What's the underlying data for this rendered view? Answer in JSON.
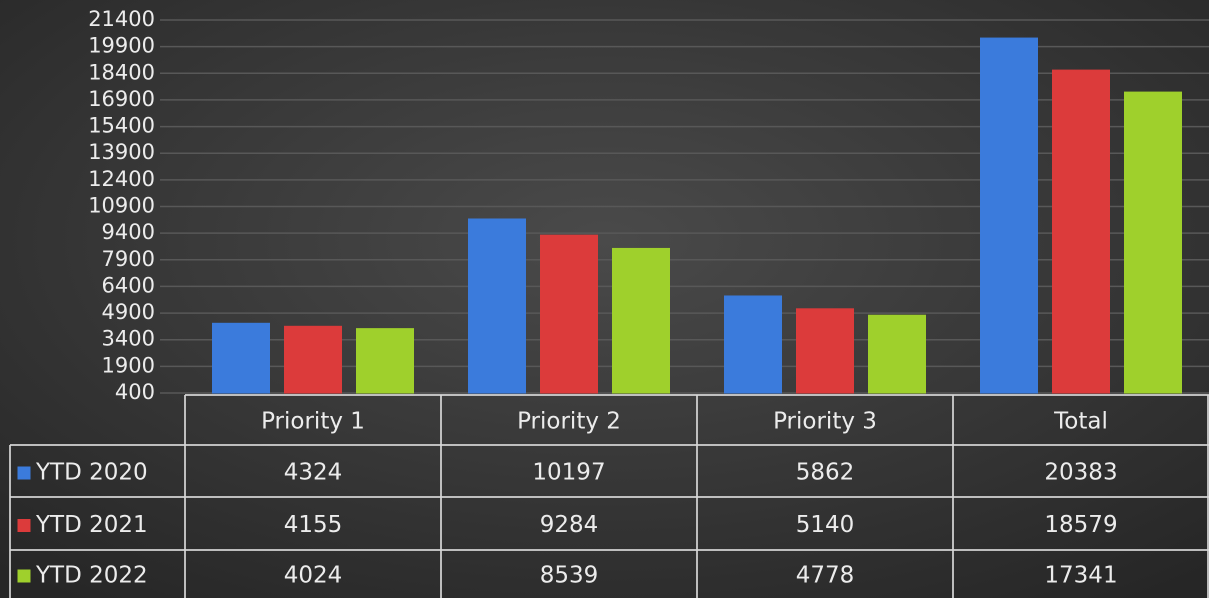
{
  "chart_data": {
    "type": "bar",
    "categories": [
      "Priority 1",
      "Priority 2",
      "Priority 3",
      "Total"
    ],
    "series": [
      {
        "name": "YTD 2020",
        "color": "#3b7bdc",
        "values": [
          4324,
          10197,
          5862,
          20383
        ]
      },
      {
        "name": "YTD 2021",
        "color": "#dc3b3b",
        "values": [
          4155,
          9284,
          5140,
          18579
        ]
      },
      {
        "name": "YTD 2022",
        "color": "#9fd02c",
        "values": [
          4024,
          8539,
          4778,
          17341
        ]
      }
    ],
    "ylim": [
      400,
      21400
    ],
    "yticks": [
      400,
      1900,
      3400,
      4900,
      6400,
      7900,
      9400,
      10900,
      12400,
      13900,
      15400,
      16900,
      18400,
      19900,
      21400
    ],
    "grid": true,
    "data_table": true
  }
}
